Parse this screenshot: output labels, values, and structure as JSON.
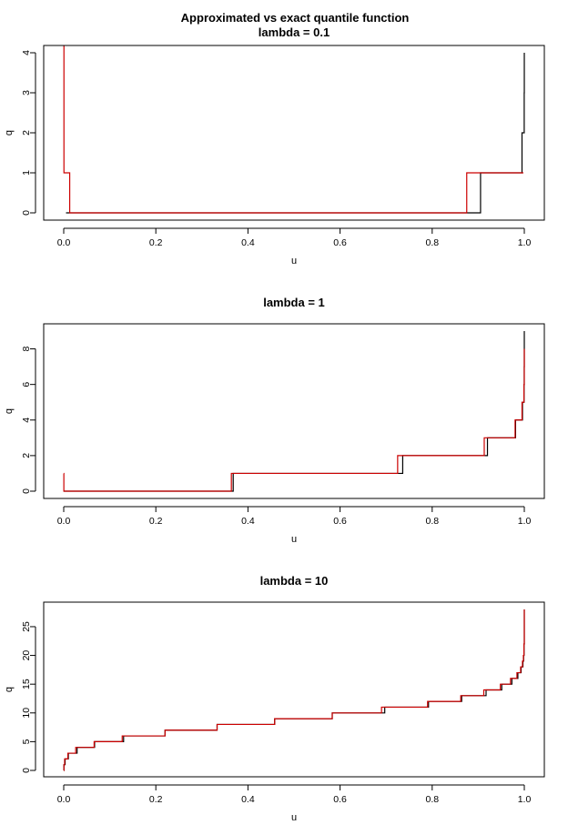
{
  "figure": {
    "main_title": "Approximated vs exact quantile function"
  },
  "chart_data": [
    {
      "type": "line",
      "title": "lambda = 0.1",
      "xlabel": "u",
      "ylabel": "q",
      "xlim": [
        0,
        1
      ],
      "ylim": [
        0,
        4
      ],
      "xticks": [
        0,
        0.2,
        0.4,
        0.6,
        0.8,
        1
      ],
      "xtick_labels": [
        "0.0",
        "0.2",
        "0.4",
        "0.6",
        "0.8",
        "1.0"
      ],
      "yticks": [
        0,
        1,
        2,
        3,
        4
      ],
      "ytick_labels": [
        "0",
        "1",
        "2",
        "3",
        "4"
      ],
      "grid": false,
      "series": [
        {
          "color": "#000000",
          "style": "step",
          "x": [
            0.005,
            0.905,
            0.995,
            0.9998,
            1.0
          ],
          "y": [
            0,
            1,
            2,
            3,
            4
          ]
        },
        {
          "color": "#cc0000",
          "style": "step",
          "x": [
            0.0,
            0.0005,
            0.013,
            0.875,
            0.998
          ],
          "y": [
            4.2,
            1,
            0,
            1,
            1
          ]
        }
      ]
    },
    {
      "type": "line",
      "title": "lambda = 1",
      "xlabel": "u",
      "ylabel": "q",
      "xlim": [
        0,
        1
      ],
      "ylim": [
        0,
        9
      ],
      "xticks": [
        0,
        0.2,
        0.4,
        0.6,
        0.8,
        1
      ],
      "xtick_labels": [
        "0.0",
        "0.2",
        "0.4",
        "0.6",
        "0.8",
        "1.0"
      ],
      "yticks": [
        0,
        2,
        4,
        6,
        8
      ],
      "ytick_labels": [
        "0",
        "2",
        "4",
        "6",
        "8"
      ],
      "grid": false,
      "series": [
        {
          "color": "#000000",
          "style": "step",
          "x": [
            0.0,
            0.368,
            0.736,
            0.92,
            0.981,
            0.996,
            0.9994,
            0.9999,
            1.0
          ],
          "y": [
            0,
            1,
            2,
            3,
            4,
            5,
            6,
            7,
            9
          ]
        },
        {
          "color": "#cc0000",
          "style": "step",
          "x": [
            0.0,
            0.0003,
            0.364,
            0.725,
            0.913,
            0.98,
            0.995,
            0.9992,
            0.9999,
            1.0
          ],
          "y": [
            1,
            0,
            1,
            2,
            3,
            4,
            5,
            6,
            7,
            8
          ]
        }
      ]
    },
    {
      "type": "line",
      "title": "lambda = 10",
      "xlabel": "u",
      "ylabel": "q",
      "xlim": [
        0,
        1
      ],
      "ylim": [
        0,
        28
      ],
      "xticks": [
        0,
        0.2,
        0.4,
        0.6,
        0.8,
        1
      ],
      "xtick_labels": [
        "0.0",
        "0.2",
        "0.4",
        "0.6",
        "0.8",
        "1.0"
      ],
      "yticks": [
        0,
        5,
        10,
        15,
        20,
        25
      ],
      "ytick_labels": [
        "0",
        "5",
        "10",
        "15",
        "20",
        "25"
      ],
      "grid": false,
      "series": [
        {
          "color": "#000000",
          "style": "step",
          "x": [
            0.0,
            0.0005,
            0.003,
            0.01,
            0.029,
            0.067,
            0.13,
            0.22,
            0.333,
            0.458,
            0.583,
            0.697,
            0.792,
            0.864,
            0.917,
            0.951,
            0.973,
            0.986,
            0.993,
            0.997,
            0.9985,
            0.9994,
            1.0
          ],
          "y": [
            0,
            1,
            2,
            3,
            4,
            5,
            6,
            7,
            8,
            9,
            10,
            11,
            12,
            13,
            14,
            15,
            16,
            17,
            18,
            19,
            20,
            22,
            28
          ]
        },
        {
          "color": "#cc0000",
          "style": "step",
          "x": [
            0.0,
            0.0005,
            0.002,
            0.009,
            0.026,
            0.066,
            0.127,
            0.22,
            0.333,
            0.458,
            0.583,
            0.69,
            0.79,
            0.862,
            0.912,
            0.948,
            0.97,
            0.984,
            0.992,
            0.996,
            0.998,
            0.9992,
            1.0
          ],
          "y": [
            0,
            1,
            2,
            3,
            4,
            5,
            6,
            7,
            8,
            9,
            10,
            11,
            12,
            13,
            14,
            15,
            16,
            17,
            18,
            19,
            20,
            22,
            28
          ]
        }
      ]
    }
  ]
}
